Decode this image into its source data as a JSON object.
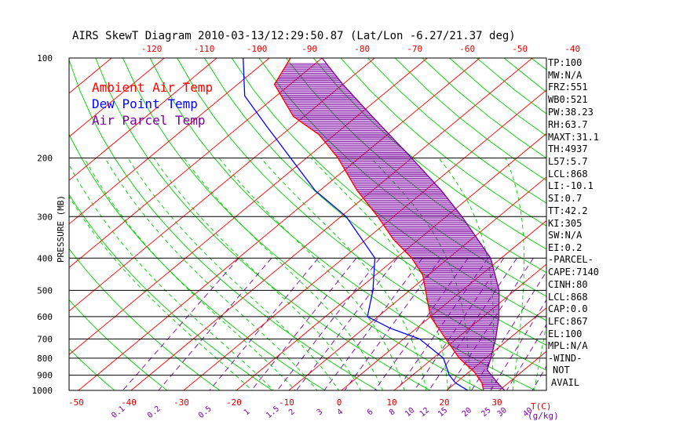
{
  "title": "AIRS SkewT Diagram 2010-03-13/12:29:50.87 (Lat/Lon -6.27/21.37 deg)",
  "legend": [
    {
      "label": "Ambient Air Temp",
      "color": "#ff0000"
    },
    {
      "label": "Dew Point Temp",
      "color": "#0000ff"
    },
    {
      "label": "Air Parcel Temp",
      "color": "#7a00a0"
    }
  ],
  "colors": {
    "isotherm": "#ff0000",
    "dry_adiabat": "#00cc00",
    "moist_adiabat": "#00cc00",
    "mixing_ratio": "#7a00a0",
    "isobar": "#000000",
    "cape_hatch": "#7a00a0"
  },
  "side_panel": [
    "TP:100",
    "MW:N/A",
    "FRZ:551",
    "WB0:521",
    "PW:38.23",
    "RH:63.7",
    "MAXT:31.1",
    "TH:4937",
    "L57:5.7",
    "LCL:868",
    "LI:-10.1",
    "SI:0.7",
    "TT:42.2",
    "KI:305",
    "SW:N/A",
    "EI:0.2",
    "-PARCEL-",
    "CAPE:7140",
    "CINH:80",
    "LCL:868",
    "CAP:0.0",
    "LFC:867",
    "EL:100",
    "MPL:N/A",
    "-WIND-",
    "NOT",
    "AVAIL"
  ],
  "chart_data": {
    "type": "line",
    "title": "AIRS SkewT Diagram 2010-03-13/12:29:50.87 (Lat/Lon -6.27/21.37 deg)",
    "ylabel": "PRESSURE (MB)",
    "xlabel": "T(C)",
    "mixing_ratio_label": "(g/kg)",
    "y_scale": "log",
    "ylim": [
      1000,
      100
    ],
    "y_ticks": [
      100,
      200,
      300,
      400,
      500,
      600,
      700,
      800,
      900,
      1000
    ],
    "top_t_ticks": [
      -120,
      -110,
      -100,
      -90,
      -80,
      -70,
      -60,
      -50,
      -40
    ],
    "bottom_t_ticks": [
      -50,
      -40,
      -30,
      -20,
      -10,
      0,
      10,
      20,
      30
    ],
    "mixing_ratio_ticks": [
      "0.1",
      "0.2",
      "0.5",
      "1",
      "1.5",
      "2",
      "3",
      "4",
      "6",
      "8",
      "10",
      "12",
      "15",
      "20",
      "25",
      "30",
      "40"
    ],
    "grid": true,
    "series": [
      {
        "name": "Ambient Air Temp",
        "points": [
          {
            "p": 1000,
            "t": 27
          },
          {
            "p": 950,
            "t": 25
          },
          {
            "p": 880,
            "t": 21
          },
          {
            "p": 800,
            "t": 15
          },
          {
            "p": 700,
            "t": 8
          },
          {
            "p": 600,
            "t": 0
          },
          {
            "p": 500,
            "t": -7
          },
          {
            "p": 450,
            "t": -11
          },
          {
            "p": 400,
            "t": -17
          },
          {
            "p": 350,
            "t": -25
          },
          {
            "p": 300,
            "t": -33
          },
          {
            "p": 250,
            "t": -43
          },
          {
            "p": 200,
            "t": -54
          },
          {
            "p": 170,
            "t": -63
          },
          {
            "p": 150,
            "t": -72
          },
          {
            "p": 120,
            "t": -83
          },
          {
            "p": 100,
            "t": -86
          }
        ]
      },
      {
        "name": "Dew Point Temp",
        "points": [
          {
            "p": 1000,
            "t": 24
          },
          {
            "p": 950,
            "t": 20
          },
          {
            "p": 900,
            "t": 17
          },
          {
            "p": 800,
            "t": 12
          },
          {
            "p": 700,
            "t": 3
          },
          {
            "p": 650,
            "t": -5
          },
          {
            "p": 600,
            "t": -12
          },
          {
            "p": 500,
            "t": -17
          },
          {
            "p": 400,
            "t": -24
          },
          {
            "p": 300,
            "t": -39
          },
          {
            "p": 250,
            "t": -51
          },
          {
            "p": 200,
            "t": -63
          },
          {
            "p": 160,
            "t": -75
          },
          {
            "p": 130,
            "t": -86
          },
          {
            "p": 100,
            "t": -95
          }
        ]
      },
      {
        "name": "Air Parcel Temp",
        "points": [
          {
            "p": 1000,
            "t": 31
          },
          {
            "p": 950,
            "t": 28
          },
          {
            "p": 900,
            "t": 25
          },
          {
            "p": 868,
            "t": 23
          },
          {
            "p": 800,
            "t": 21
          },
          {
            "p": 700,
            "t": 17.5
          },
          {
            "p": 600,
            "t": 13
          },
          {
            "p": 500,
            "t": 7
          },
          {
            "p": 400,
            "t": -2
          },
          {
            "p": 300,
            "t": -17
          },
          {
            "p": 250,
            "t": -27
          },
          {
            "p": 200,
            "t": -40
          },
          {
            "p": 150,
            "t": -57
          },
          {
            "p": 120,
            "t": -70
          },
          {
            "p": 100,
            "t": -80
          }
        ]
      }
    ]
  }
}
